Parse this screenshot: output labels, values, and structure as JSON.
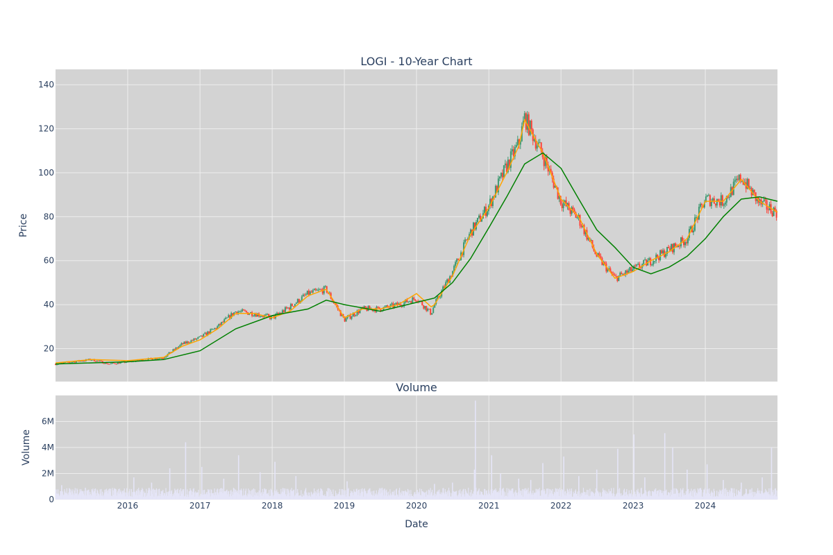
{
  "chart_data": [
    {
      "type": "candlestick",
      "title": "LOGI - 10-Year Chart",
      "xlabel": "",
      "ylabel": "Price",
      "xlim": [
        "2015-01-01",
        "2024-12-31"
      ],
      "ylim": [
        5,
        147
      ],
      "y_ticks": [
        20,
        40,
        60,
        80,
        100,
        120,
        140
      ],
      "grid": true,
      "legend": "none",
      "colors": {
        "up": "#3d9970",
        "down": "#ff4136",
        "ma_short": "#ffa500",
        "ma_long": "#008000",
        "background": "#d3d3d3"
      },
      "series": [
        {
          "type": "candlestick",
          "x": [
            "2015-01-01",
            "2015-04-01",
            "2015-07-01",
            "2015-10-01",
            "2016-01-01",
            "2016-04-01",
            "2016-07-01",
            "2016-10-01",
            "2017-01-01",
            "2017-04-01",
            "2017-07-01",
            "2017-10-01",
            "2018-01-01",
            "2018-04-01",
            "2018-07-01",
            "2018-10-01",
            "2019-01-01",
            "2019-04-01",
            "2019-07-01",
            "2019-10-01",
            "2020-01-01",
            "2020-03-15",
            "2020-04-01",
            "2020-07-01",
            "2020-10-01",
            "2021-01-01",
            "2021-04-01",
            "2021-06-01",
            "2021-07-01",
            "2021-10-01",
            "2022-01-01",
            "2022-04-01",
            "2022-07-01",
            "2022-10-01",
            "2023-01-01",
            "2023-04-01",
            "2023-07-01",
            "2023-10-01",
            "2024-01-01",
            "2024-04-01",
            "2024-07-01",
            "2024-10-01",
            "2024-12-31"
          ],
          "close": [
            13,
            14,
            15,
            13,
            14,
            15,
            16,
            22,
            25,
            30,
            37,
            36,
            34,
            39,
            45,
            47,
            33,
            38,
            38,
            40,
            43,
            36,
            40,
            55,
            73,
            85,
            103,
            113,
            125,
            108,
            87,
            79,
            62,
            52,
            56,
            60,
            65,
            70,
            88,
            87,
            98,
            86,
            82
          ]
        },
        {
          "type": "line",
          "name": "",
          "x": [
            "2015-01-01",
            "2015-07-01",
            "2016-01-01",
            "2016-07-01",
            "2016-10-01",
            "2017-01-01",
            "2017-04-01",
            "2017-07-01",
            "2017-10-01",
            "2018-01-01",
            "2018-04-01",
            "2018-07-01",
            "2018-10-01",
            "2019-01-01",
            "2019-04-01",
            "2019-07-01",
            "2019-10-01",
            "2020-01-01",
            "2020-03-15",
            "2020-04-01",
            "2020-07-01",
            "2020-10-01",
            "2021-01-01",
            "2021-04-01",
            "2021-06-01",
            "2021-07-01",
            "2021-10-01",
            "2022-01-01",
            "2022-04-01",
            "2022-07-01",
            "2022-10-01",
            "2023-01-01",
            "2023-04-01",
            "2023-07-01",
            "2023-10-01",
            "2024-01-01",
            "2024-04-01",
            "2024-07-01",
            "2024-10-01",
            "2024-12-31"
          ],
          "values": [
            13.5,
            15,
            14.5,
            16,
            21,
            24,
            29,
            36,
            36,
            34,
            37,
            44,
            47,
            34,
            38,
            38,
            40,
            45,
            39,
            40,
            53,
            72,
            84,
            100,
            112,
            124,
            109,
            88,
            80,
            63,
            52,
            55,
            60,
            64,
            70,
            87,
            87,
            97,
            87,
            82
          ]
        },
        {
          "type": "line",
          "name": "",
          "x": [
            "2015-01-01",
            "2016-01-01",
            "2016-07-01",
            "2017-01-01",
            "2017-07-01",
            "2018-01-01",
            "2018-07-01",
            "2018-10-01",
            "2019-01-01",
            "2019-07-01",
            "2020-01-01",
            "2020-04-01",
            "2020-07-01",
            "2020-10-01",
            "2021-01-01",
            "2021-04-01",
            "2021-07-01",
            "2021-10-01",
            "2022-01-01",
            "2022-04-01",
            "2022-07-01",
            "2022-10-01",
            "2023-01-01",
            "2023-04-01",
            "2023-07-01",
            "2023-10-01",
            "2024-01-01",
            "2024-04-01",
            "2024-07-01",
            "2024-10-01",
            "2024-12-31"
          ],
          "values": [
            13,
            14,
            15,
            19,
            29,
            35,
            38,
            42,
            40,
            37,
            41,
            43,
            50,
            61,
            75,
            89,
            104,
            109,
            102,
            88,
            74,
            66,
            57,
            54,
            57,
            62,
            70,
            80,
            88,
            89,
            87
          ]
        }
      ]
    },
    {
      "type": "bar",
      "title": "Volume",
      "xlabel": "Date",
      "ylabel": "Volume",
      "xlim": [
        "2015-01-01",
        "2024-12-31"
      ],
      "ylim": [
        0,
        8000000
      ],
      "y_ticks": [
        0,
        2000000,
        4000000,
        6000000
      ],
      "y_tick_labels": [
        "0",
        "2M",
        "4M",
        "6M"
      ],
      "x_ticks": [
        "2016",
        "2017",
        "2018",
        "2019",
        "2020",
        "2021",
        "2022",
        "2023",
        "2024"
      ],
      "grid": true,
      "legend": "none",
      "colors": {
        "bar": "#e5e5f7"
      },
      "series": [
        {
          "type": "bar",
          "x": [
            "2015-02-01",
            "2015-06-01",
            "2015-10-01",
            "2016-02-01",
            "2016-05-01",
            "2016-08-01",
            "2016-10-20",
            "2017-01-10",
            "2017-05-01",
            "2017-07-15",
            "2017-11-01",
            "2018-01-15",
            "2018-05-01",
            "2018-09-01",
            "2019-01-15",
            "2019-05-01",
            "2019-09-01",
            "2020-01-15",
            "2020-04-01",
            "2020-07-01",
            "2020-10-20",
            "2020-10-25",
            "2021-01-15",
            "2021-03-01",
            "2021-06-01",
            "2021-08-01",
            "2021-10-01",
            "2022-01-15",
            "2022-04-01",
            "2022-07-01",
            "2022-10-15",
            "2023-01-05",
            "2023-03-01",
            "2023-06-10",
            "2023-07-20",
            "2023-10-01",
            "2024-01-10",
            "2024-04-01",
            "2024-07-01",
            "2024-10-15",
            "2024-12-01"
          ],
          "values": [
            1100000,
            900000,
            800000,
            1700000,
            1300000,
            2400000,
            4400000,
            2500000,
            1600000,
            3400000,
            2100000,
            2900000,
            1800000,
            600000,
            1400000,
            700000,
            600000,
            500000,
            1200000,
            1300000,
            2300000,
            7600000,
            3400000,
            2000000,
            1600000,
            1500000,
            2800000,
            3300000,
            1800000,
            2300000,
            3900000,
            5000000,
            1700000,
            5100000,
            4000000,
            2300000,
            2700000,
            1500000,
            1300000,
            1700000,
            4000000
          ]
        }
      ]
    }
  ]
}
